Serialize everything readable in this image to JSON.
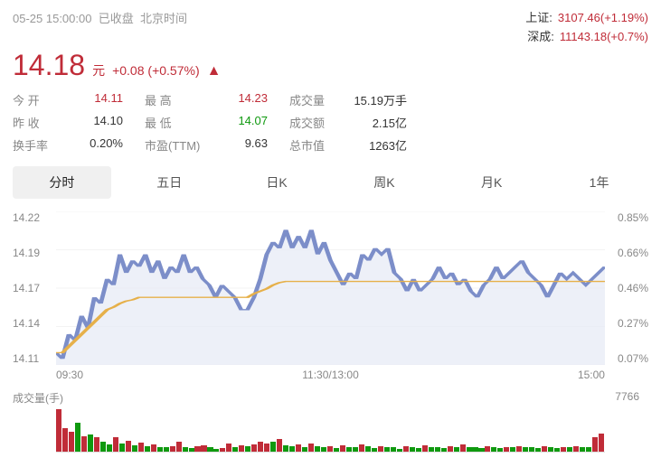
{
  "header": {
    "timestamp": "05-25 15:00:00",
    "status": "已收盘",
    "tz": "北京时间"
  },
  "indices": [
    {
      "name": "上证:",
      "value": "3107.46(+1.19%)"
    },
    {
      "name": "深成:",
      "value": "11143.18(+0.7%)"
    }
  ],
  "price": {
    "main": "14.18",
    "unit": "元",
    "change_abs": "+0.08",
    "change_pct": "(+0.57%)",
    "color": "#c02c38"
  },
  "stats": [
    {
      "label": "今 开",
      "value": "14.11",
      "cls": "red"
    },
    {
      "label": "最 高",
      "value": "14.23",
      "cls": "red"
    },
    {
      "label": "成交量",
      "value": "15.19万手",
      "cls": ""
    },
    {
      "label": "昨 收",
      "value": "14.10",
      "cls": ""
    },
    {
      "label": "最 低",
      "value": "14.07",
      "cls": "green"
    },
    {
      "label": "成交额",
      "value": "2.15亿",
      "cls": ""
    },
    {
      "label": "换手率",
      "value": "0.20%",
      "cls": ""
    },
    {
      "label": "市盈(TTM)",
      "value": "9.63",
      "cls": ""
    },
    {
      "label": "总市值",
      "value": "1263亿",
      "cls": ""
    }
  ],
  "tabs": [
    "分时",
    "五日",
    "日K",
    "周K",
    "月K",
    "1年"
  ],
  "active_tab": 0,
  "chart": {
    "type": "line",
    "y_left_ticks": [
      "14.22",
      "14.19",
      "14.17",
      "14.14",
      "14.11"
    ],
    "y_right_ticks": [
      "0.85%",
      "0.66%",
      "0.46%",
      "0.27%",
      "0.07%"
    ],
    "x_ticks": [
      "09:30",
      "11:30/13:00",
      "15:00"
    ],
    "ylim": [
      14.1,
      14.225
    ],
    "line_color": "#7c8ec9",
    "fill_color": "#e6eaf5",
    "avg_line_color": "#e6b04a",
    "grid_color": "#e8e8e8",
    "background_color": "#ffffff",
    "price_series": [
      14.11,
      14.105,
      14.125,
      14.12,
      14.14,
      14.13,
      14.155,
      14.15,
      14.17,
      14.165,
      14.19,
      14.175,
      14.185,
      14.18,
      14.19,
      14.175,
      14.185,
      14.17,
      14.18,
      14.175,
      14.19,
      14.175,
      14.18,
      14.17,
      14.165,
      14.155,
      14.165,
      14.16,
      14.155,
      14.145,
      14.145,
      14.155,
      14.17,
      14.19,
      14.2,
      14.195,
      14.21,
      14.195,
      14.205,
      14.195,
      14.21,
      14.19,
      14.2,
      14.185,
      14.175,
      14.165,
      14.175,
      14.17,
      14.19,
      14.185,
      14.195,
      14.19,
      14.195,
      14.175,
      14.17,
      14.16,
      14.17,
      14.16,
      14.165,
      14.17,
      14.18,
      14.17,
      14.175,
      14.165,
      14.17,
      14.16,
      14.155,
      14.165,
      14.17,
      14.18,
      14.17,
      14.175,
      14.18,
      14.185,
      14.175,
      14.17,
      14.165,
      14.155,
      14.165,
      14.175,
      14.17,
      14.175,
      14.17,
      14.165,
      14.17,
      14.175,
      14.18
    ],
    "avg_series": [
      14.11,
      14.11,
      14.115,
      14.12,
      14.125,
      14.13,
      14.135,
      14.14,
      14.145,
      14.147,
      14.15,
      14.152,
      14.153,
      14.155,
      14.155,
      14.155,
      14.155,
      14.155,
      14.155,
      14.155,
      14.155,
      14.155,
      14.155,
      14.155,
      14.155,
      14.155,
      14.155,
      14.155,
      14.155,
      14.155,
      14.155,
      14.158,
      14.16,
      14.162,
      14.165,
      14.167,
      14.168,
      14.168,
      14.168,
      14.168,
      14.168,
      14.168,
      14.168,
      14.168,
      14.168,
      14.168,
      14.168,
      14.168,
      14.168,
      14.168,
      14.168,
      14.168,
      14.168,
      14.168,
      14.168,
      14.168,
      14.168,
      14.168,
      14.168,
      14.168,
      14.168,
      14.168,
      14.168,
      14.168,
      14.168,
      14.168,
      14.168,
      14.168,
      14.168,
      14.168,
      14.168,
      14.168,
      14.168,
      14.168,
      14.168,
      14.168,
      14.168,
      14.168,
      14.168,
      14.168,
      14.168,
      14.168,
      14.168,
      14.168,
      14.168,
      14.168,
      14.168
    ]
  },
  "volume": {
    "label": "成交量(手)",
    "max_label": "7766",
    "max": 7766,
    "up_color": "#c02c38",
    "down_color": "#0f990f",
    "bars": [
      7766,
      4200,
      3500,
      5200,
      2800,
      3100,
      2500,
      1800,
      1300,
      2500,
      1400,
      1900,
      1100,
      1600,
      900,
      1200,
      800,
      700,
      1000,
      1700,
      800,
      600,
      900,
      1100,
      700,
      500,
      600,
      1400,
      800,
      1100,
      900,
      1300,
      1800,
      1500,
      1700,
      2200,
      1100,
      900,
      1200,
      800,
      1400,
      1000,
      700,
      900,
      600,
      1100,
      800,
      700,
      1200,
      900,
      600,
      1000,
      800,
      700,
      500,
      900,
      700,
      600,
      1100,
      800,
      700,
      600,
      900,
      700,
      1200,
      800,
      700,
      600,
      900,
      700,
      600,
      800,
      700,
      900,
      800,
      700,
      600,
      900,
      700,
      600,
      800,
      700,
      1000,
      800,
      700,
      2500,
      3200
    ],
    "dirs": [
      1,
      1,
      1,
      -1,
      1,
      -1,
      1,
      -1,
      -1,
      1,
      -1,
      1,
      -1,
      1,
      -1,
      1,
      -1,
      -1,
      1,
      1,
      -1,
      -1,
      1,
      1,
      -1,
      -1,
      1,
      1,
      -1,
      1,
      -1,
      1,
      1,
      1,
      -1,
      1,
      -1,
      -1,
      1,
      -1,
      1,
      -1,
      -1,
      1,
      -1,
      1,
      -1,
      -1,
      1,
      -1,
      -1,
      1,
      -1,
      -1,
      -1,
      1,
      -1,
      -1,
      1,
      -1,
      -1,
      -1,
      1,
      -1,
      1,
      -1,
      -1,
      -1,
      1,
      -1,
      -1,
      1,
      -1,
      1,
      -1,
      -1,
      -1,
      1,
      -1,
      -1,
      1,
      -1,
      1,
      -1,
      -1,
      1,
      1
    ]
  }
}
